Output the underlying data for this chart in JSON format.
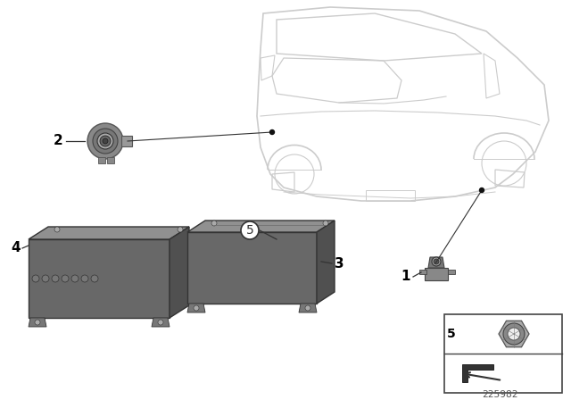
{
  "background_color": "#ffffff",
  "part_number": "225982",
  "car_color": "#cccccc",
  "car_lw": 1.2,
  "box_face": "#666666",
  "box_top": "#999999",
  "box_side": "#555555",
  "box_edge": "#333333",
  "label_color": "#000000",
  "line_color": "#333333",
  "inset_border": "#444444"
}
